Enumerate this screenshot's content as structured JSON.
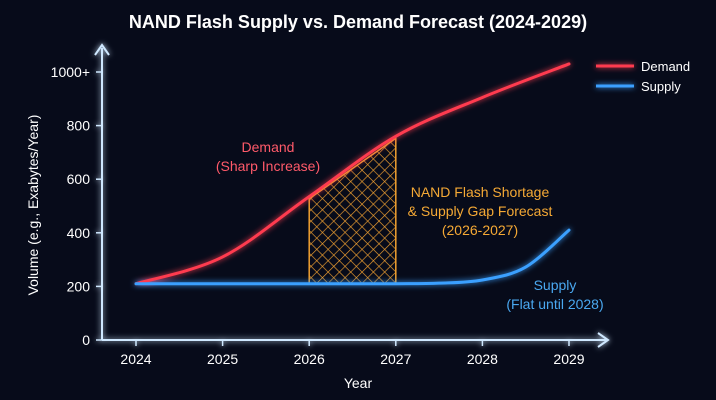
{
  "chart_data": {
    "type": "line",
    "title": "NAND Flash Supply vs. Demand Forecast (2024-2029)",
    "xlabel": "Year",
    "ylabel": "Volume (e.g., Exabytes/Year)",
    "x_ticks": [
      "2024",
      "2025",
      "2026",
      "2027",
      "2028",
      "2029"
    ],
    "y_ticks": [
      {
        "value": 0,
        "label": "0"
      },
      {
        "value": 200,
        "label": "200"
      },
      {
        "value": 400,
        "label": "400"
      },
      {
        "value": 600,
        "label": "600"
      },
      {
        "value": 800,
        "label": "800"
      },
      {
        "value": 1000,
        "label": "1000+"
      }
    ],
    "xlim": [
      2024,
      2029
    ],
    "ylim": [
      0,
      1000
    ],
    "grid": false,
    "legend_position": "top-right",
    "series": [
      {
        "name": "Demand",
        "color": "#ff3b4f",
        "x": [
          2024,
          2025,
          2026,
          2027,
          2028,
          2029
        ],
        "y": [
          210,
          310,
          535,
          760,
          905,
          1030
        ]
      },
      {
        "name": "Supply",
        "color": "#3aa0ff",
        "x": [
          2024,
          2025,
          2026,
          2027,
          2027.5,
          2028,
          2028.5,
          2029
        ],
        "y": [
          210,
          210,
          210,
          210,
          212,
          224,
          272,
          410
        ]
      }
    ],
    "shaded_region": {
      "x": [
        2026,
        2027
      ],
      "color": "#f0a030",
      "pattern": "crosshatch"
    },
    "annotations": [
      {
        "lines": [
          "Demand",
          "(Sharp Increase)"
        ],
        "color": "#ff5a6a"
      },
      {
        "lines": [
          "NAND Flash Shortage",
          "& Supply Gap Forecast",
          "(2026-2027)"
        ],
        "color": "#f5a935"
      },
      {
        "lines": [
          "Supply",
          "(Flat until 2028)"
        ],
        "color": "#4aa8f0"
      }
    ]
  }
}
